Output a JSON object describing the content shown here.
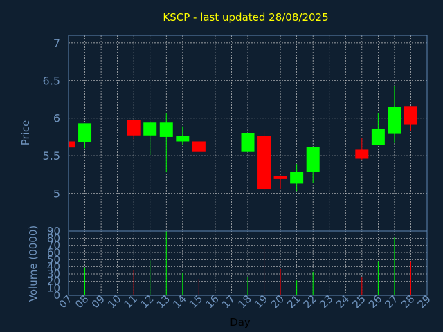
{
  "title": "KSCP - last updated 28/08/2025",
  "colors": {
    "background": "#0f1f30",
    "title": "#ffff00",
    "axis_text": "#6f93bd",
    "frame": "#5f87b5",
    "up": "#00ff00",
    "down": "#ff0000"
  },
  "chart_data": [
    {
      "type": "candlestick",
      "title": "KSCP - last updated 28/08/2025",
      "ylabel": "Price",
      "ylim": [
        4.5,
        7.1
      ],
      "yticks": [
        "5",
        "5.5",
        "6",
        "6.5",
        "7"
      ],
      "grid": true,
      "candles": [
        {
          "day": 7,
          "open": 5.69,
          "high": 5.69,
          "low": 5.61,
          "close": 5.61
        },
        {
          "day": 8,
          "open": 5.68,
          "high": 5.93,
          "low": 5.6,
          "close": 5.93
        },
        {
          "day": 11,
          "open": 5.97,
          "high": 5.97,
          "low": 5.72,
          "close": 5.77
        },
        {
          "day": 12,
          "open": 5.77,
          "high": 5.95,
          "low": 5.51,
          "close": 5.94
        },
        {
          "day": 13,
          "open": 5.75,
          "high": 6.06,
          "low": 5.28,
          "close": 5.94
        },
        {
          "day": 14,
          "open": 5.69,
          "high": 5.89,
          "low": 5.65,
          "close": 5.76
        },
        {
          "day": 15,
          "open": 5.69,
          "high": 5.69,
          "low": 5.55,
          "close": 5.55
        },
        {
          "day": 18,
          "open": 5.55,
          "high": 5.8,
          "low": 5.55,
          "close": 5.8
        },
        {
          "day": 19,
          "open": 5.76,
          "high": 5.84,
          "low": 5.01,
          "close": 5.06
        },
        {
          "day": 20,
          "open": 5.23,
          "high": 5.24,
          "low": 5.06,
          "close": 5.19
        },
        {
          "day": 21,
          "open": 5.13,
          "high": 5.39,
          "low": 5.03,
          "close": 5.29
        },
        {
          "day": 22,
          "open": 5.29,
          "high": 5.62,
          "low": 5.14,
          "close": 5.62
        },
        {
          "day": 25,
          "open": 5.58,
          "high": 5.74,
          "low": 5.44,
          "close": 5.46
        },
        {
          "day": 26,
          "open": 5.64,
          "high": 6.07,
          "low": 5.64,
          "close": 5.86
        },
        {
          "day": 27,
          "open": 5.79,
          "high": 6.43,
          "low": 5.67,
          "close": 6.15
        },
        {
          "day": 28,
          "open": 6.16,
          "high": 6.16,
          "low": 5.83,
          "close": 5.91
        }
      ]
    },
    {
      "type": "bar",
      "ylabel": "Volume (0000)",
      "xlabel": "Day",
      "ylim": [
        0,
        90
      ],
      "yticks": [
        "0",
        "10",
        "20",
        "30",
        "40",
        "50",
        "60",
        "70",
        "80",
        "90"
      ],
      "xticks": [
        "07",
        "08",
        "09",
        "10",
        "11",
        "12",
        "13",
        "14",
        "15",
        "16",
        "17",
        "18",
        "19",
        "20",
        "21",
        "22",
        "23",
        "24",
        "25",
        "26",
        "27",
        "28",
        "29"
      ],
      "grid": true,
      "bars": [
        {
          "day": 8,
          "value": 39,
          "direction": "up"
        },
        {
          "day": 11,
          "value": 35,
          "direction": "down"
        },
        {
          "day": 12,
          "value": 49,
          "direction": "up"
        },
        {
          "day": 13,
          "value": 90,
          "direction": "up"
        },
        {
          "day": 14,
          "value": 32,
          "direction": "up"
        },
        {
          "day": 15,
          "value": 23,
          "direction": "down"
        },
        {
          "day": 18,
          "value": 26,
          "direction": "up"
        },
        {
          "day": 19,
          "value": 68,
          "direction": "down"
        },
        {
          "day": 20,
          "value": 37,
          "direction": "down"
        },
        {
          "day": 21,
          "value": 21,
          "direction": "up"
        },
        {
          "day": 22,
          "value": 33,
          "direction": "up"
        },
        {
          "day": 25,
          "value": 25,
          "direction": "down"
        },
        {
          "day": 26,
          "value": 47,
          "direction": "up"
        },
        {
          "day": 27,
          "value": 81,
          "direction": "up"
        },
        {
          "day": 28,
          "value": 47,
          "direction": "down"
        }
      ]
    }
  ]
}
